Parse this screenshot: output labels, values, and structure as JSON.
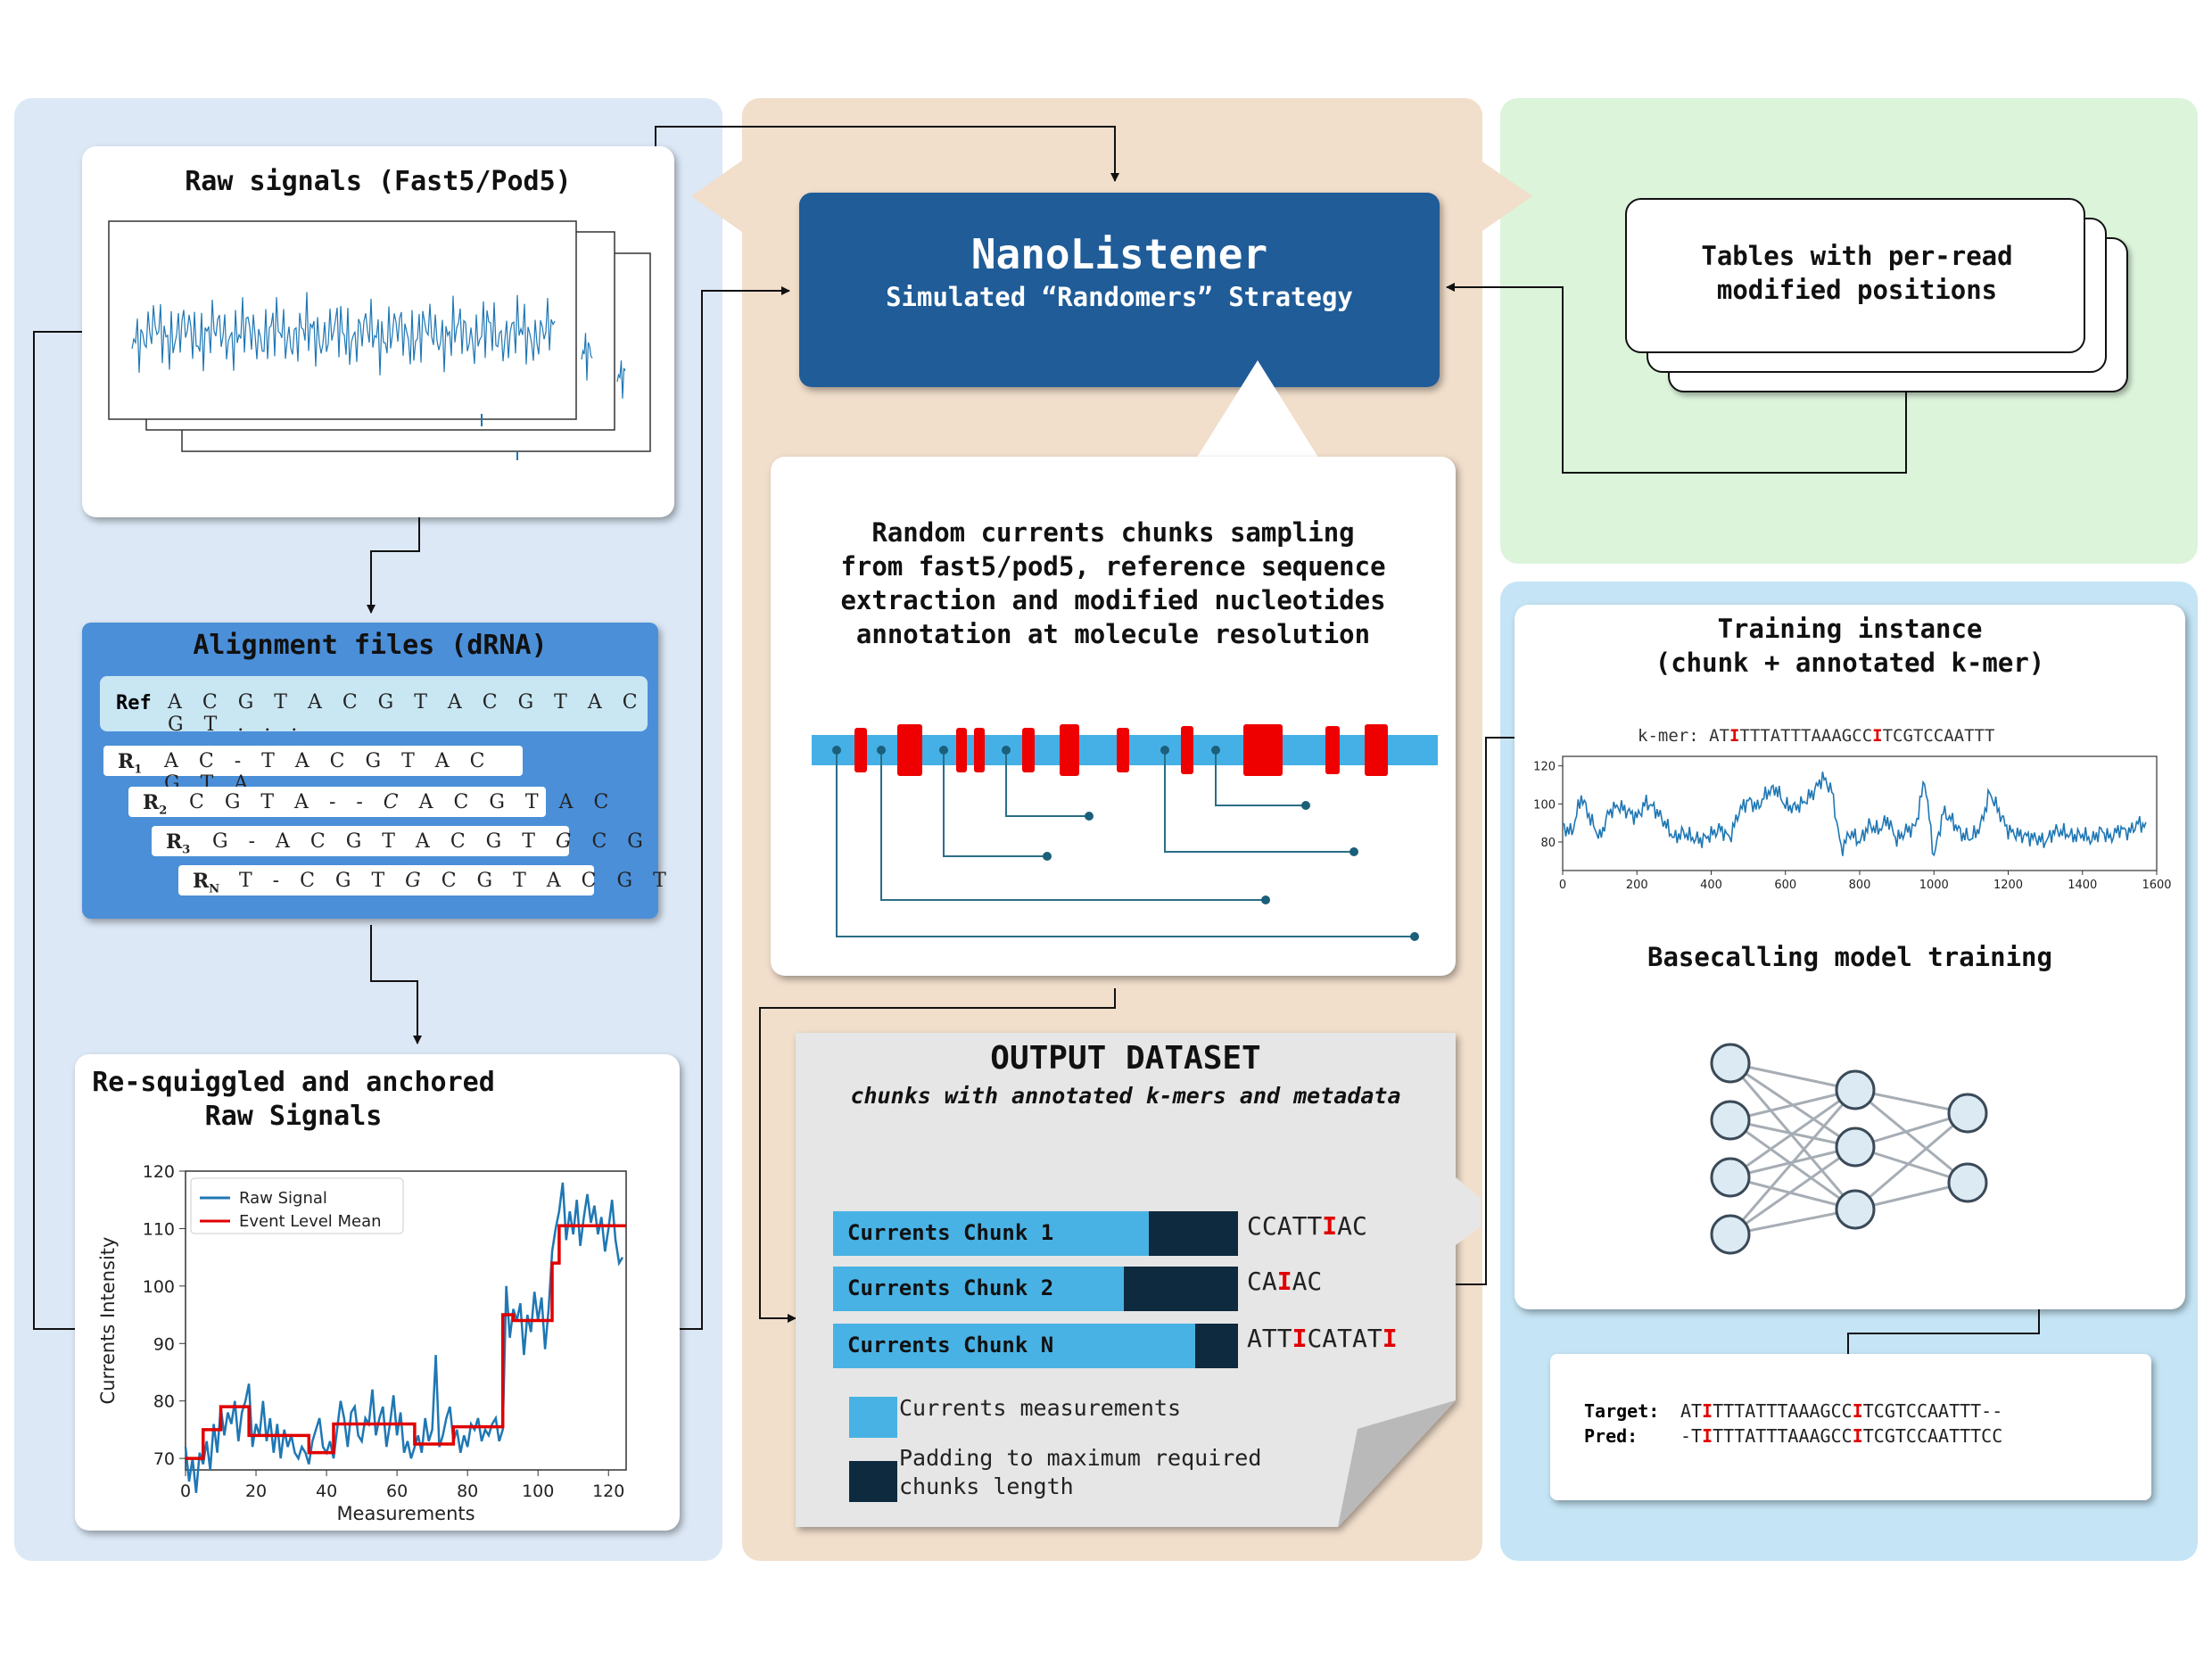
{
  "raw": {
    "title": "Raw signals (Fast5/Pod5)"
  },
  "alignment": {
    "title": "Alignment files (dRNA)",
    "ref_label": "Ref",
    "ref_seq": "A C G T A C G T A C G T A C G T . . .",
    "reads": [
      {
        "label": "R",
        "sub": "1",
        "seq": "A C - T A C G T A C G T A"
      },
      {
        "label": "R",
        "sub": "2",
        "seq_a": "C G T A - - ",
        "seq_i": "C",
        "seq_b": " A C G T A C"
      },
      {
        "label": "R",
        "sub": "3",
        "seq_a": "G - A C G T A C G T ",
        "seq_i": "G",
        "seq_b": " C G"
      },
      {
        "label": "R",
        "sub": "N",
        "seq_a": "T - C G T ",
        "seq_i": "G",
        "seq_b": " C G T A C G T"
      }
    ]
  },
  "resquiggle": {
    "title_line1": "Re-squiggled and anchored",
    "title_line2": "Raw Signals"
  },
  "center": {
    "title": "NanoListener",
    "subtitle": "Simulated “Randomers” Strategy",
    "sampling_text": [
      "Random currents chunks sampling",
      "from fast5/pod5, reference sequence",
      "extraction and modified nucleotides",
      "annotation at molecule resolution"
    ]
  },
  "output": {
    "title": "OUTPUT DATASET",
    "subtitle": "chunks with annotated k-mers and metadata",
    "chunks": [
      {
        "label": "Currents Chunk 1",
        "kmer_a": "CCATT",
        "kmer_i": "I",
        "kmer_b": "AC",
        "kmer_i2": ""
      },
      {
        "label": "Currents Chunk 2",
        "kmer_a": "CA",
        "kmer_i": "I",
        "kmer_b": "AC",
        "kmer_i2": ""
      },
      {
        "label": "Currents Chunk N",
        "kmer_a": "ATT",
        "kmer_i": "I",
        "kmer_b": "CATAT",
        "kmer_i2": "I"
      }
    ],
    "legend_measure": "Currents measurements",
    "legend_pad_line1": "Padding to maximum required",
    "legend_pad_line2": "chunks length"
  },
  "tables": {
    "line1": "Tables with per-read",
    "line2": "modified positions"
  },
  "training": {
    "title_line1": "Training instance",
    "title_line2": "(chunk + annotated k-mer)",
    "kmer_label": "k-mer: ",
    "kmer_a": "AT",
    "kmer_i": "I",
    "kmer_b": "TTTATTTAAAGCC",
    "kmer_i2": "I",
    "kmer_c": "TCGTCCAATTT",
    "model_title": "Basecalling model training"
  },
  "result": {
    "target_label": "Target:",
    "target_a": "AT",
    "target_i": "I",
    "target_b": "TTTATTTAAAGCC",
    "target_i2": "I",
    "target_c": "TCGTCCAATTT--",
    "pred_label": "Pred:",
    "pred_a": "-T",
    "pred_i": "I",
    "pred_b": "TTTATTTAAAGCC",
    "pred_i2": "I",
    "pred_c": "TCGTCCAATTTCC"
  },
  "chart_data": [
    {
      "type": "line",
      "title": "Re-squiggled and anchored Raw Signals",
      "xlabel": "Measurements",
      "ylabel": "Currents Intensity",
      "xlim": [
        0,
        125
      ],
      "ylim": [
        68,
        120
      ],
      "xticks": [
        0,
        20,
        40,
        60,
        80,
        100,
        120
      ],
      "yticks": [
        70,
        80,
        90,
        100,
        110,
        120
      ],
      "legend_position": "top-left",
      "series": [
        {
          "name": "Raw Signal",
          "color": "#1f77b4",
          "x": [
            0,
            1,
            2,
            3,
            4,
            5,
            6,
            7,
            8,
            9,
            10,
            11,
            12,
            13,
            14,
            15,
            16,
            17,
            18,
            19,
            20,
            21,
            22,
            23,
            24,
            25,
            26,
            27,
            28,
            29,
            30,
            31,
            32,
            33,
            34,
            35,
            36,
            37,
            38,
            39,
            40,
            41,
            42,
            43,
            44,
            45,
            46,
            47,
            48,
            49,
            50,
            51,
            52,
            53,
            54,
            55,
            56,
            57,
            58,
            59,
            60,
            61,
            62,
            63,
            64,
            65,
            66,
            67,
            68,
            69,
            70,
            71,
            72,
            73,
            74,
            75,
            76,
            77,
            78,
            79,
            80,
            81,
            82,
            83,
            84,
            85,
            86,
            87,
            88,
            89,
            90,
            91,
            92,
            93,
            94,
            95,
            96,
            97,
            98,
            99,
            100,
            101,
            102,
            103,
            104,
            105,
            106,
            107,
            108,
            109,
            110,
            111,
            112,
            113,
            114,
            115,
            116,
            117,
            118,
            119,
            120,
            121,
            122,
            123,
            124
          ],
          "y": [
            72,
            66,
            70,
            64,
            71,
            69,
            73,
            68,
            76,
            71,
            79,
            74,
            78,
            76,
            80,
            73,
            78,
            80,
            83,
            72,
            76,
            74,
            80,
            73,
            77,
            71,
            76,
            70,
            75,
            72,
            74,
            71,
            70,
            72,
            71,
            69,
            73,
            75,
            77,
            72,
            71,
            73,
            70,
            75,
            80,
            77,
            72,
            78,
            79,
            74,
            73,
            77,
            76,
            82,
            74,
            77,
            79,
            72,
            76,
            81,
            74,
            78,
            71,
            73,
            70,
            72,
            74,
            71,
            77,
            73,
            75,
            88,
            72,
            74,
            77,
            79,
            73,
            75,
            71,
            74,
            72,
            76,
            75,
            77,
            73,
            75,
            74,
            76,
            77,
            73,
            75,
            100,
            91,
            96,
            94,
            97,
            88,
            95,
            92,
            99,
            94,
            98,
            89,
            96,
            106,
            110,
            113,
            118,
            108,
            113,
            109,
            115,
            107,
            112,
            116,
            111,
            114,
            109,
            112,
            106,
            110,
            115,
            108,
            104,
            105
          ]
        },
        {
          "name": "Event Level Mean",
          "color": "#e00000",
          "segments": [
            [
              0,
              5,
              70
            ],
            [
              5,
              10,
              75
            ],
            [
              10,
              18,
              79
            ],
            [
              18,
              35,
              74
            ],
            [
              35,
              42,
              71
            ],
            [
              42,
              65,
              76
            ],
            [
              65,
              76,
              72.5
            ],
            [
              76,
              90,
              75.5
            ],
            [
              90,
              93,
              95
            ],
            [
              93,
              104,
              94
            ],
            [
              104,
              106,
              104
            ],
            [
              106,
              125,
              110.5
            ]
          ]
        }
      ]
    },
    {
      "type": "line",
      "title": "",
      "xlabel": "",
      "ylabel": "",
      "xlim": [
        0,
        1600
      ],
      "ylim": [
        65,
        125
      ],
      "xticks": [
        0,
        200,
        400,
        600,
        800,
        1000,
        1200,
        1400,
        1600
      ],
      "yticks": [
        80,
        100,
        120
      ],
      "series": [
        {
          "name": "",
          "color": "#1f77b4",
          "x": [
            0,
            25,
            50,
            75,
            100,
            125,
            150,
            175,
            200,
            225,
            250,
            275,
            300,
            325,
            350,
            375,
            400,
            425,
            450,
            475,
            500,
            525,
            550,
            575,
            600,
            625,
            650,
            675,
            700,
            725,
            750,
            775,
            800,
            825,
            850,
            875,
            900,
            925,
            950,
            975,
            1000,
            1025,
            1050,
            1075,
            1100,
            1125,
            1150,
            1175,
            1200,
            1225,
            1250,
            1275,
            1300,
            1325,
            1350,
            1375,
            1400,
            1425,
            1450,
            1475,
            1500,
            1525,
            1550,
            1575
          ],
          "y": [
            88,
            85,
            104,
            92,
            82,
            96,
            99,
            96,
            93,
            101,
            97,
            90,
            82,
            85,
            82,
            81,
            84,
            87,
            82,
            96,
            102,
            98,
            106,
            108,
            99,
            98,
            101,
            106,
            114,
            107,
            76,
            85,
            80,
            89,
            86,
            92,
            81,
            86,
            88,
            113,
            72,
            96,
            91,
            84,
            82,
            88,
            106,
            96,
            86,
            84,
            83,
            82,
            80,
            86,
            85,
            83,
            84,
            81,
            86,
            82,
            87,
            85,
            90,
            88
          ]
        }
      ]
    },
    {
      "type": "line",
      "title": "Raw signals (Fast5/Pod5)",
      "xlabel": "",
      "ylabel": "",
      "series": [
        {
          "name": "",
          "color": "#1f77b4",
          "x": [],
          "y": []
        }
      ]
    }
  ]
}
